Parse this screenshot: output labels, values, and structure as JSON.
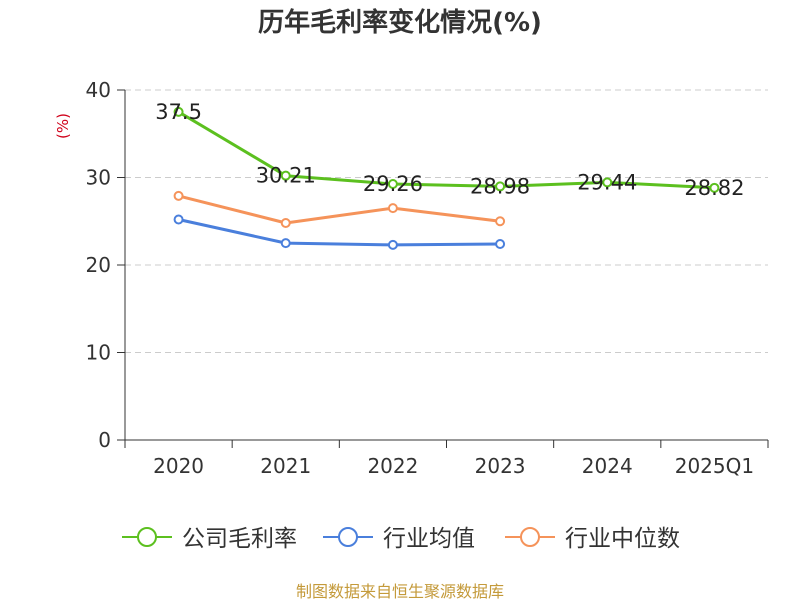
{
  "title": "历年毛利率变化情况(%)",
  "footer": "制图数据来自恒生聚源数据库",
  "chart_data": {
    "type": "line",
    "title": "历年毛利率变化情况(%)",
    "ylabel": "(%)",
    "xlabel": "",
    "categories": [
      "2020",
      "2021",
      "2022",
      "2023",
      "2024",
      "2025Q1"
    ],
    "ylim": [
      0,
      40
    ],
    "yticks": [
      0,
      10,
      20,
      30,
      40
    ],
    "grid": true,
    "legend_position": "bottom",
    "series": [
      {
        "name": "公司毛利率",
        "color": "#5cc01f",
        "values": [
          37.5,
          30.21,
          29.26,
          28.98,
          29.44,
          28.82
        ],
        "labels": [
          "37.5",
          "30.21",
          "29.26",
          "28.98",
          "29.44",
          "28.82"
        ]
      },
      {
        "name": "行业均值",
        "color": "#4a7fdc",
        "values": [
          25.2,
          22.5,
          22.3,
          22.4,
          null,
          null
        ]
      },
      {
        "name": "行业中位数",
        "color": "#f5935a",
        "values": [
          27.9,
          24.8,
          26.5,
          25.0,
          null,
          null
        ]
      }
    ]
  }
}
